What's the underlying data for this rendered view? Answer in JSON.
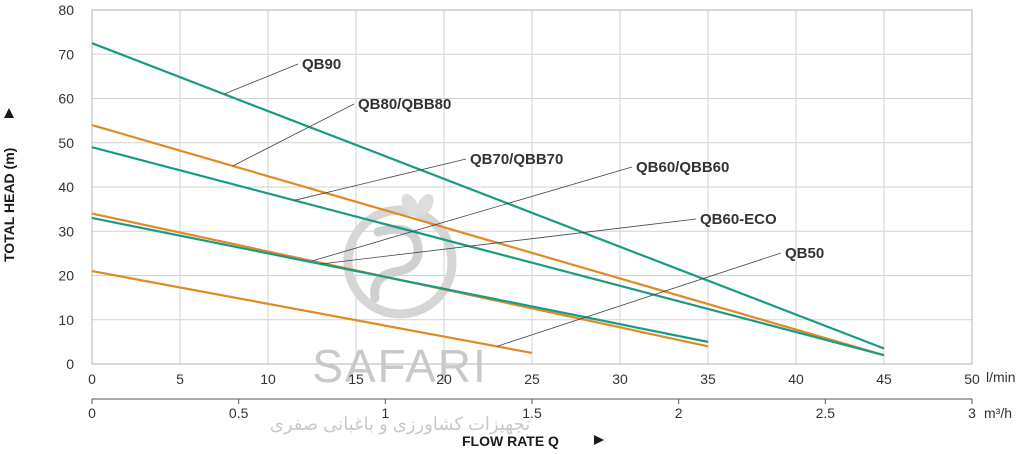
{
  "chart_data": {
    "type": "line",
    "ylabel": "TOTAL HEAD (m)",
    "xlabel": "FLOW RATE Q",
    "x_unit": "l/min",
    "x2_unit": "m³/h",
    "xlim": [
      0,
      50
    ],
    "ylim": [
      0,
      80
    ],
    "x_ticks": [
      "0",
      "5",
      "10",
      "15",
      "20",
      "25",
      "30",
      "35",
      "40",
      "45",
      "50"
    ],
    "y_ticks": [
      "0",
      "10",
      "20",
      "30",
      "40",
      "50",
      "60",
      "70",
      "80"
    ],
    "x2_ticks": [
      "0",
      "0.5",
      "1",
      "1.5",
      "2",
      "2.5",
      "3"
    ],
    "grid": true,
    "series": [
      {
        "name": "QB90",
        "color": "#1a9a85",
        "x": [
          0,
          45
        ],
        "y": [
          72.5,
          3.5
        ]
      },
      {
        "name": "QB80/QBB80",
        "color": "#e08a25",
        "x": [
          0,
          45
        ],
        "y": [
          54,
          2
        ]
      },
      {
        "name": "QB70/QBB70",
        "color": "#1a9a85",
        "x": [
          0,
          45
        ],
        "y": [
          49,
          2
        ]
      },
      {
        "name": "QB60/QBB60",
        "color": "#e08a25",
        "x": [
          0,
          35
        ],
        "y": [
          34,
          4
        ]
      },
      {
        "name": "QB60-ECO",
        "color": "#1a9a85",
        "x": [
          0,
          35
        ],
        "y": [
          33,
          5
        ]
      },
      {
        "name": "QB50",
        "color": "#e08a25",
        "x": [
          0,
          25
        ],
        "y": [
          21,
          2.5
        ]
      }
    ]
  },
  "watermark": {
    "brand": "SAFARI",
    "subtitle": "تجهیزات کشاورزی و باغبانی صفری"
  }
}
